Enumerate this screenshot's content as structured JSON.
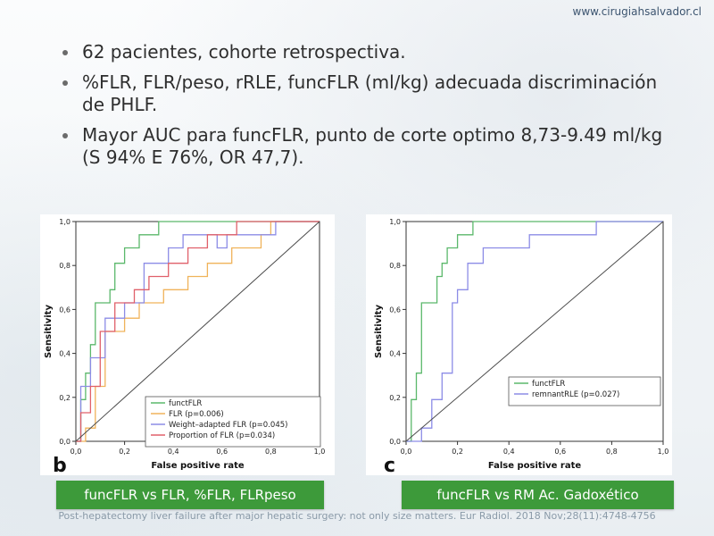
{
  "site": {
    "url": "www.cirugiahsalvador.cl"
  },
  "bullets": [
    "62 pacientes, cohorte retrospectiva.",
    "%FLR, FLR/peso, rRLE, funcFLR (ml/kg) adecuada discriminación de PHLF.",
    "Mayor AUC para funcFLR, punto de corte optimo 8,73-9.49 ml/kg (S 94% E 76%, OR 47,7)."
  ],
  "panels": [
    {
      "letter": "b",
      "caption": "funcFLR vs FLR, %FLR, FLRpeso"
    },
    {
      "letter": "c",
      "caption": "funcFLR vs RM Ac. Gadoxético"
    }
  ],
  "reference": "Post-hepatectomy liver failure after major hepatic surgery: not only size matters. Eur Radiol. 2018 Nov;28(11):4748-4756",
  "chart_data": [
    {
      "type": "line",
      "xlabel": "False positive rate",
      "ylabel": "Sensitivity",
      "xlim": [
        0,
        1
      ],
      "ylim": [
        0,
        1
      ],
      "xticks": [
        "0,0",
        "0,2",
        "0,4",
        "0,6",
        "0,8",
        "1,0"
      ],
      "yticks": [
        "0,0",
        "0,2",
        "0,4",
        "0,6",
        "0,8",
        "1,0"
      ],
      "legend_position": "bottom-right",
      "series": [
        {
          "name": "functFLR",
          "color": "#5bb86b",
          "x": [
            0,
            0.02,
            0.02,
            0.04,
            0.04,
            0.06,
            0.06,
            0.08,
            0.08,
            0.14,
            0.14,
            0.16,
            0.16,
            0.2,
            0.2,
            0.26,
            0.26,
            0.34,
            0.34,
            1.0
          ],
          "y": [
            0,
            0,
            0.19,
            0.19,
            0.31,
            0.31,
            0.44,
            0.44,
            0.63,
            0.63,
            0.69,
            0.69,
            0.81,
            0.81,
            0.88,
            0.88,
            0.94,
            0.94,
            1.0,
            1.0
          ]
        },
        {
          "name": "FLR (p=0.006)",
          "color": "#f0b35a",
          "x": [
            0,
            0.04,
            0.04,
            0.08,
            0.08,
            0.12,
            0.12,
            0.2,
            0.2,
            0.26,
            0.26,
            0.36,
            0.36,
            0.46,
            0.46,
            0.54,
            0.54,
            0.64,
            0.64,
            0.76,
            0.76,
            0.8,
            0.8,
            1.0
          ],
          "y": [
            0,
            0,
            0.06,
            0.06,
            0.25,
            0.25,
            0.5,
            0.5,
            0.56,
            0.56,
            0.63,
            0.63,
            0.69,
            0.69,
            0.75,
            0.75,
            0.81,
            0.81,
            0.88,
            0.88,
            0.94,
            0.94,
            1.0,
            1.0
          ]
        },
        {
          "name": "Weight–adapted FLR (p=0.045)",
          "color": "#8c8ce6",
          "x": [
            0,
            0.02,
            0.02,
            0.06,
            0.06,
            0.12,
            0.12,
            0.2,
            0.2,
            0.28,
            0.28,
            0.38,
            0.38,
            0.44,
            0.44,
            0.58,
            0.58,
            0.62,
            0.62,
            0.82,
            0.82,
            1.0
          ],
          "y": [
            0,
            0,
            0.25,
            0.25,
            0.38,
            0.38,
            0.56,
            0.56,
            0.63,
            0.63,
            0.81,
            0.81,
            0.88,
            0.88,
            0.94,
            0.94,
            0.88,
            0.88,
            0.94,
            0.94,
            1.0,
            1.0
          ]
        },
        {
          "name": "Proportion of FLR (p=0.034)",
          "color": "#e0606a",
          "x": [
            0,
            0.02,
            0.02,
            0.06,
            0.06,
            0.1,
            0.1,
            0.16,
            0.16,
            0.24,
            0.24,
            0.3,
            0.3,
            0.38,
            0.38,
            0.46,
            0.46,
            0.54,
            0.54,
            0.66,
            0.66,
            1.0
          ],
          "y": [
            0,
            0,
            0.13,
            0.13,
            0.25,
            0.25,
            0.5,
            0.5,
            0.63,
            0.63,
            0.69,
            0.69,
            0.75,
            0.75,
            0.81,
            0.81,
            0.88,
            0.88,
            0.94,
            0.94,
            1.0,
            1.0
          ]
        },
        {
          "name": "",
          "color": "#4a4a4a",
          "x": [
            0,
            1
          ],
          "y": [
            0,
            1
          ]
        }
      ]
    },
    {
      "type": "line",
      "xlabel": "False positive rate",
      "ylabel": "Sensitivity",
      "xlim": [
        0,
        1
      ],
      "ylim": [
        0,
        1
      ],
      "xticks": [
        "0,0",
        "0,2",
        "0,4",
        "0,6",
        "0,8",
        "1,0"
      ],
      "yticks": [
        "0,0",
        "0,2",
        "0,4",
        "0,6",
        "0,8",
        "1,0"
      ],
      "legend_position": "bottom-right",
      "series": [
        {
          "name": "functFLR",
          "color": "#5bb86b",
          "x": [
            0,
            0.02,
            0.02,
            0.04,
            0.04,
            0.06,
            0.06,
            0.12,
            0.12,
            0.14,
            0.14,
            0.16,
            0.16,
            0.2,
            0.2,
            0.26,
            0.26,
            0.32,
            0.32,
            1.0
          ],
          "y": [
            0,
            0,
            0.19,
            0.19,
            0.31,
            0.31,
            0.63,
            0.63,
            0.75,
            0.75,
            0.81,
            0.81,
            0.88,
            0.88,
            0.94,
            0.94,
            1.0,
            1.0,
            1.0,
            1.0
          ]
        },
        {
          "name": "remnantRLE (p=0.027)",
          "color": "#8c8ce6",
          "x": [
            0,
            0.06,
            0.06,
            0.1,
            0.1,
            0.14,
            0.14,
            0.18,
            0.18,
            0.2,
            0.2,
            0.24,
            0.24,
            0.3,
            0.3,
            0.48,
            0.48,
            0.74,
            0.74,
            1.0
          ],
          "y": [
            0,
            0,
            0.06,
            0.06,
            0.19,
            0.19,
            0.31,
            0.31,
            0.63,
            0.63,
            0.69,
            0.69,
            0.81,
            0.81,
            0.88,
            0.88,
            0.94,
            0.94,
            1.0,
            1.0
          ]
        },
        {
          "name": "",
          "color": "#4a4a4a",
          "x": [
            0,
            1
          ],
          "y": [
            0,
            1
          ]
        }
      ]
    }
  ]
}
